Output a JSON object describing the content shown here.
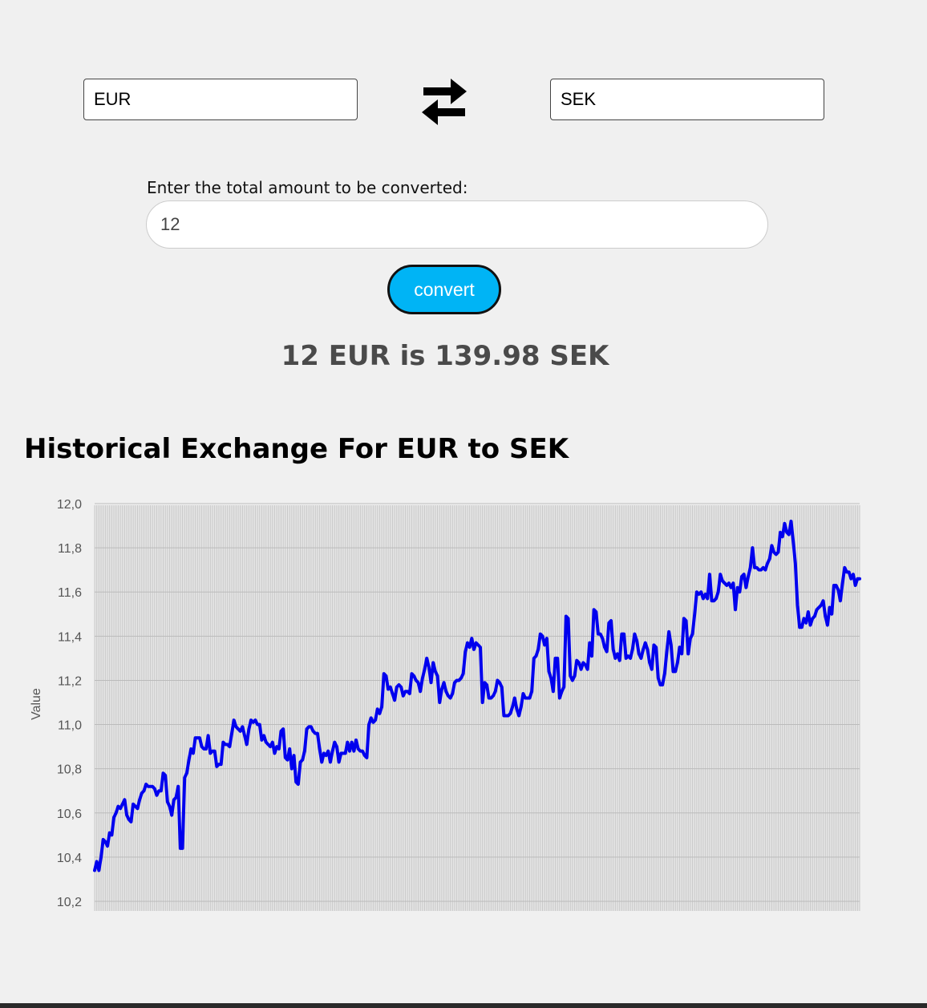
{
  "converter": {
    "from_currency": "EUR",
    "to_currency": "SEK",
    "swap_icon": "swap-arrows-icon",
    "amount_label": "Enter the total amount to be converted:",
    "amount_value": "12",
    "convert_label": "convert",
    "result_text": "12 EUR is 139.98 SEK"
  },
  "chart_heading": "Historical Exchange For EUR to SEK",
  "chart_data": {
    "type": "line",
    "title": "Historical Exchange For EUR to SEK",
    "xlabel": "",
    "ylabel": "Value",
    "ylim": [
      10.2,
      12.0
    ],
    "yticks": [
      "12,0",
      "11,8",
      "11,6",
      "11,4",
      "11,2",
      "11,0",
      "10,8",
      "10,6",
      "10,4",
      "10,2"
    ],
    "grid": true,
    "line_color": "#0000ee",
    "series": [
      {
        "values": [
          10.34,
          10.38,
          10.34,
          10.4,
          10.48,
          10.47,
          10.45,
          10.51,
          10.5,
          10.58,
          10.6,
          10.63,
          10.62,
          10.64,
          10.66,
          10.59,
          10.57,
          10.56,
          10.64,
          10.63,
          10.62,
          10.66,
          10.69,
          10.7,
          10.73,
          10.72,
          10.72,
          10.72,
          10.71,
          10.68,
          10.7,
          10.7,
          10.78,
          10.77,
          10.65,
          10.63,
          10.59,
          10.66,
          10.67,
          10.72,
          10.44,
          10.44,
          10.76,
          10.78,
          10.84,
          10.89,
          10.87,
          10.94,
          10.94,
          10.94,
          10.9,
          10.89,
          10.89,
          10.95,
          10.87,
          10.88,
          10.88,
          10.81,
          10.82,
          10.82,
          10.92,
          10.91,
          10.91,
          10.9,
          10.96,
          11.02,
          10.99,
          10.98,
          10.97,
          10.99,
          10.95,
          10.91,
          10.98,
          11.02,
          11.01,
          11.02,
          11.0,
          11.0,
          10.93,
          10.95,
          10.92,
          10.91,
          10.9,
          10.92,
          10.87,
          10.9,
          10.89,
          10.97,
          10.98,
          10.85,
          10.84,
          10.89,
          10.8,
          10.86,
          10.74,
          10.73,
          10.83,
          10.84,
          10.88,
          10.98,
          10.99,
          10.99,
          10.97,
          10.96,
          10.96,
          10.89,
          10.83,
          10.87,
          10.86,
          10.88,
          10.83,
          10.88,
          10.92,
          10.9,
          10.83,
          10.87,
          10.87,
          10.87,
          10.92,
          10.88,
          10.92,
          10.88,
          10.93,
          10.89,
          10.88,
          10.88,
          10.86,
          10.85,
          11.0,
          11.03,
          11.01,
          11.02,
          11.07,
          11.05,
          11.08,
          11.23,
          11.22,
          11.16,
          11.17,
          11.14,
          11.11,
          11.17,
          11.18,
          11.17,
          11.13,
          11.15,
          11.15,
          11.14,
          11.23,
          11.22,
          11.2,
          11.19,
          11.15,
          11.21,
          11.25,
          11.3,
          11.26,
          11.19,
          11.28,
          11.24,
          11.22,
          11.1,
          11.16,
          11.19,
          11.15,
          11.13,
          11.12,
          11.14,
          11.19,
          11.2,
          11.2,
          11.21,
          11.23,
          11.33,
          11.37,
          11.35,
          11.39,
          11.34,
          11.37,
          11.36,
          11.35,
          11.1,
          11.19,
          11.18,
          11.12,
          11.12,
          11.13,
          11.15,
          11.2,
          11.19,
          11.17,
          11.04,
          11.04,
          11.04,
          11.05,
          11.08,
          11.12,
          11.07,
          11.04,
          11.08,
          11.14,
          11.12,
          11.12,
          11.12,
          11.15,
          11.3,
          11.31,
          11.34,
          11.41,
          11.4,
          11.36,
          11.39,
          11.24,
          11.21,
          11.15,
          11.3,
          11.3,
          11.12,
          11.15,
          11.17,
          11.49,
          11.48,
          11.22,
          11.2,
          11.22,
          11.29,
          11.28,
          11.25,
          11.28,
          11.27,
          11.25,
          11.37,
          11.31,
          11.52,
          11.51,
          11.41,
          11.41,
          11.39,
          11.35,
          11.33,
          11.46,
          11.47,
          11.34,
          11.3,
          11.32,
          11.29,
          11.41,
          11.41,
          11.3,
          11.31,
          11.3,
          11.34,
          11.41,
          11.38,
          11.32,
          11.3,
          11.34,
          11.37,
          11.34,
          11.28,
          11.25,
          11.36,
          11.35,
          11.21,
          11.18,
          11.18,
          11.23,
          11.33,
          11.42,
          11.36,
          11.24,
          11.24,
          11.28,
          11.35,
          11.32,
          11.48,
          11.47,
          11.32,
          11.39,
          11.41,
          11.5,
          11.6,
          11.59,
          11.6,
          11.57,
          11.59,
          11.57,
          11.68,
          11.56,
          11.56,
          11.57,
          11.6,
          11.68,
          11.65,
          11.64,
          11.63,
          11.64,
          11.62,
          11.64,
          11.52,
          11.62,
          11.6,
          11.67,
          11.68,
          11.62,
          11.67,
          11.71,
          11.8,
          11.71,
          11.71,
          11.7,
          11.7,
          11.71,
          11.7,
          11.73,
          11.75,
          11.81,
          11.78,
          11.77,
          11.78,
          11.87,
          11.85,
          11.91,
          11.87,
          11.86,
          11.92,
          11.83,
          11.73,
          11.54,
          11.44,
          11.44,
          11.48,
          11.46,
          11.51,
          11.45,
          11.48,
          11.49,
          11.52,
          11.53,
          11.54,
          11.56,
          11.49,
          11.45,
          11.53,
          11.5,
          11.63,
          11.63,
          11.61,
          11.56,
          11.64,
          11.71,
          11.69,
          11.69,
          11.66,
          11.68,
          11.63,
          11.66,
          11.66
        ]
      }
    ]
  }
}
